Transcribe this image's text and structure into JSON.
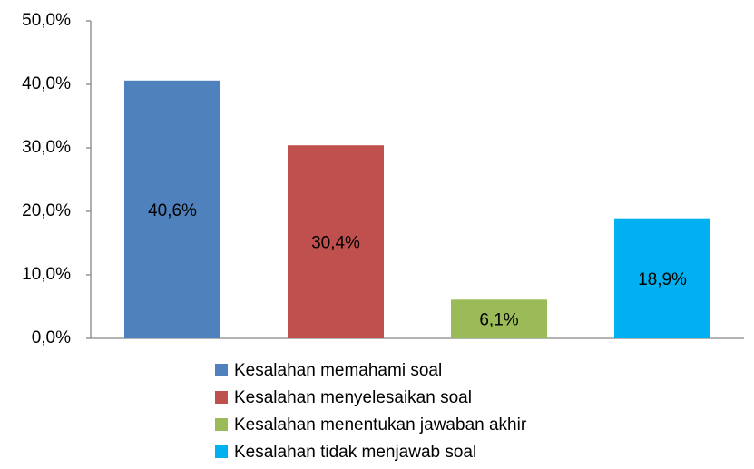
{
  "chart_data": {
    "type": "bar",
    "series": [
      {
        "name": "Kesalahan memahami soal",
        "color": "#4f81bd",
        "values": [
          40.6
        ],
        "value_labels": [
          "40,6%"
        ]
      },
      {
        "name": "Kesalahan menyelesaikan soal",
        "color": "#c0504d",
        "values": [
          30.4
        ],
        "value_labels": [
          "30,4%"
        ]
      },
      {
        "name": "Kesalahan menentukan jawaban akhir",
        "color": "#9bbb59",
        "values": [
          6.1
        ],
        "value_labels": [
          "6,1%"
        ]
      },
      {
        "name": "Kesalahan tidak menjawab soal",
        "color": "#00b0f0",
        "values": [
          18.9
        ],
        "value_labels": [
          "18,9%"
        ]
      }
    ],
    "ylim": [
      0,
      50
    ],
    "yticks": [
      {
        "value": 0,
        "label": "0,0%"
      },
      {
        "value": 10,
        "label": "10,0%"
      },
      {
        "value": 20,
        "label": "20,0%"
      },
      {
        "value": 30,
        "label": "30,0%"
      },
      {
        "value": 40,
        "label": "40,0%"
      },
      {
        "value": 50,
        "label": "50,0%"
      }
    ],
    "legend": "bottom",
    "grid": false
  }
}
